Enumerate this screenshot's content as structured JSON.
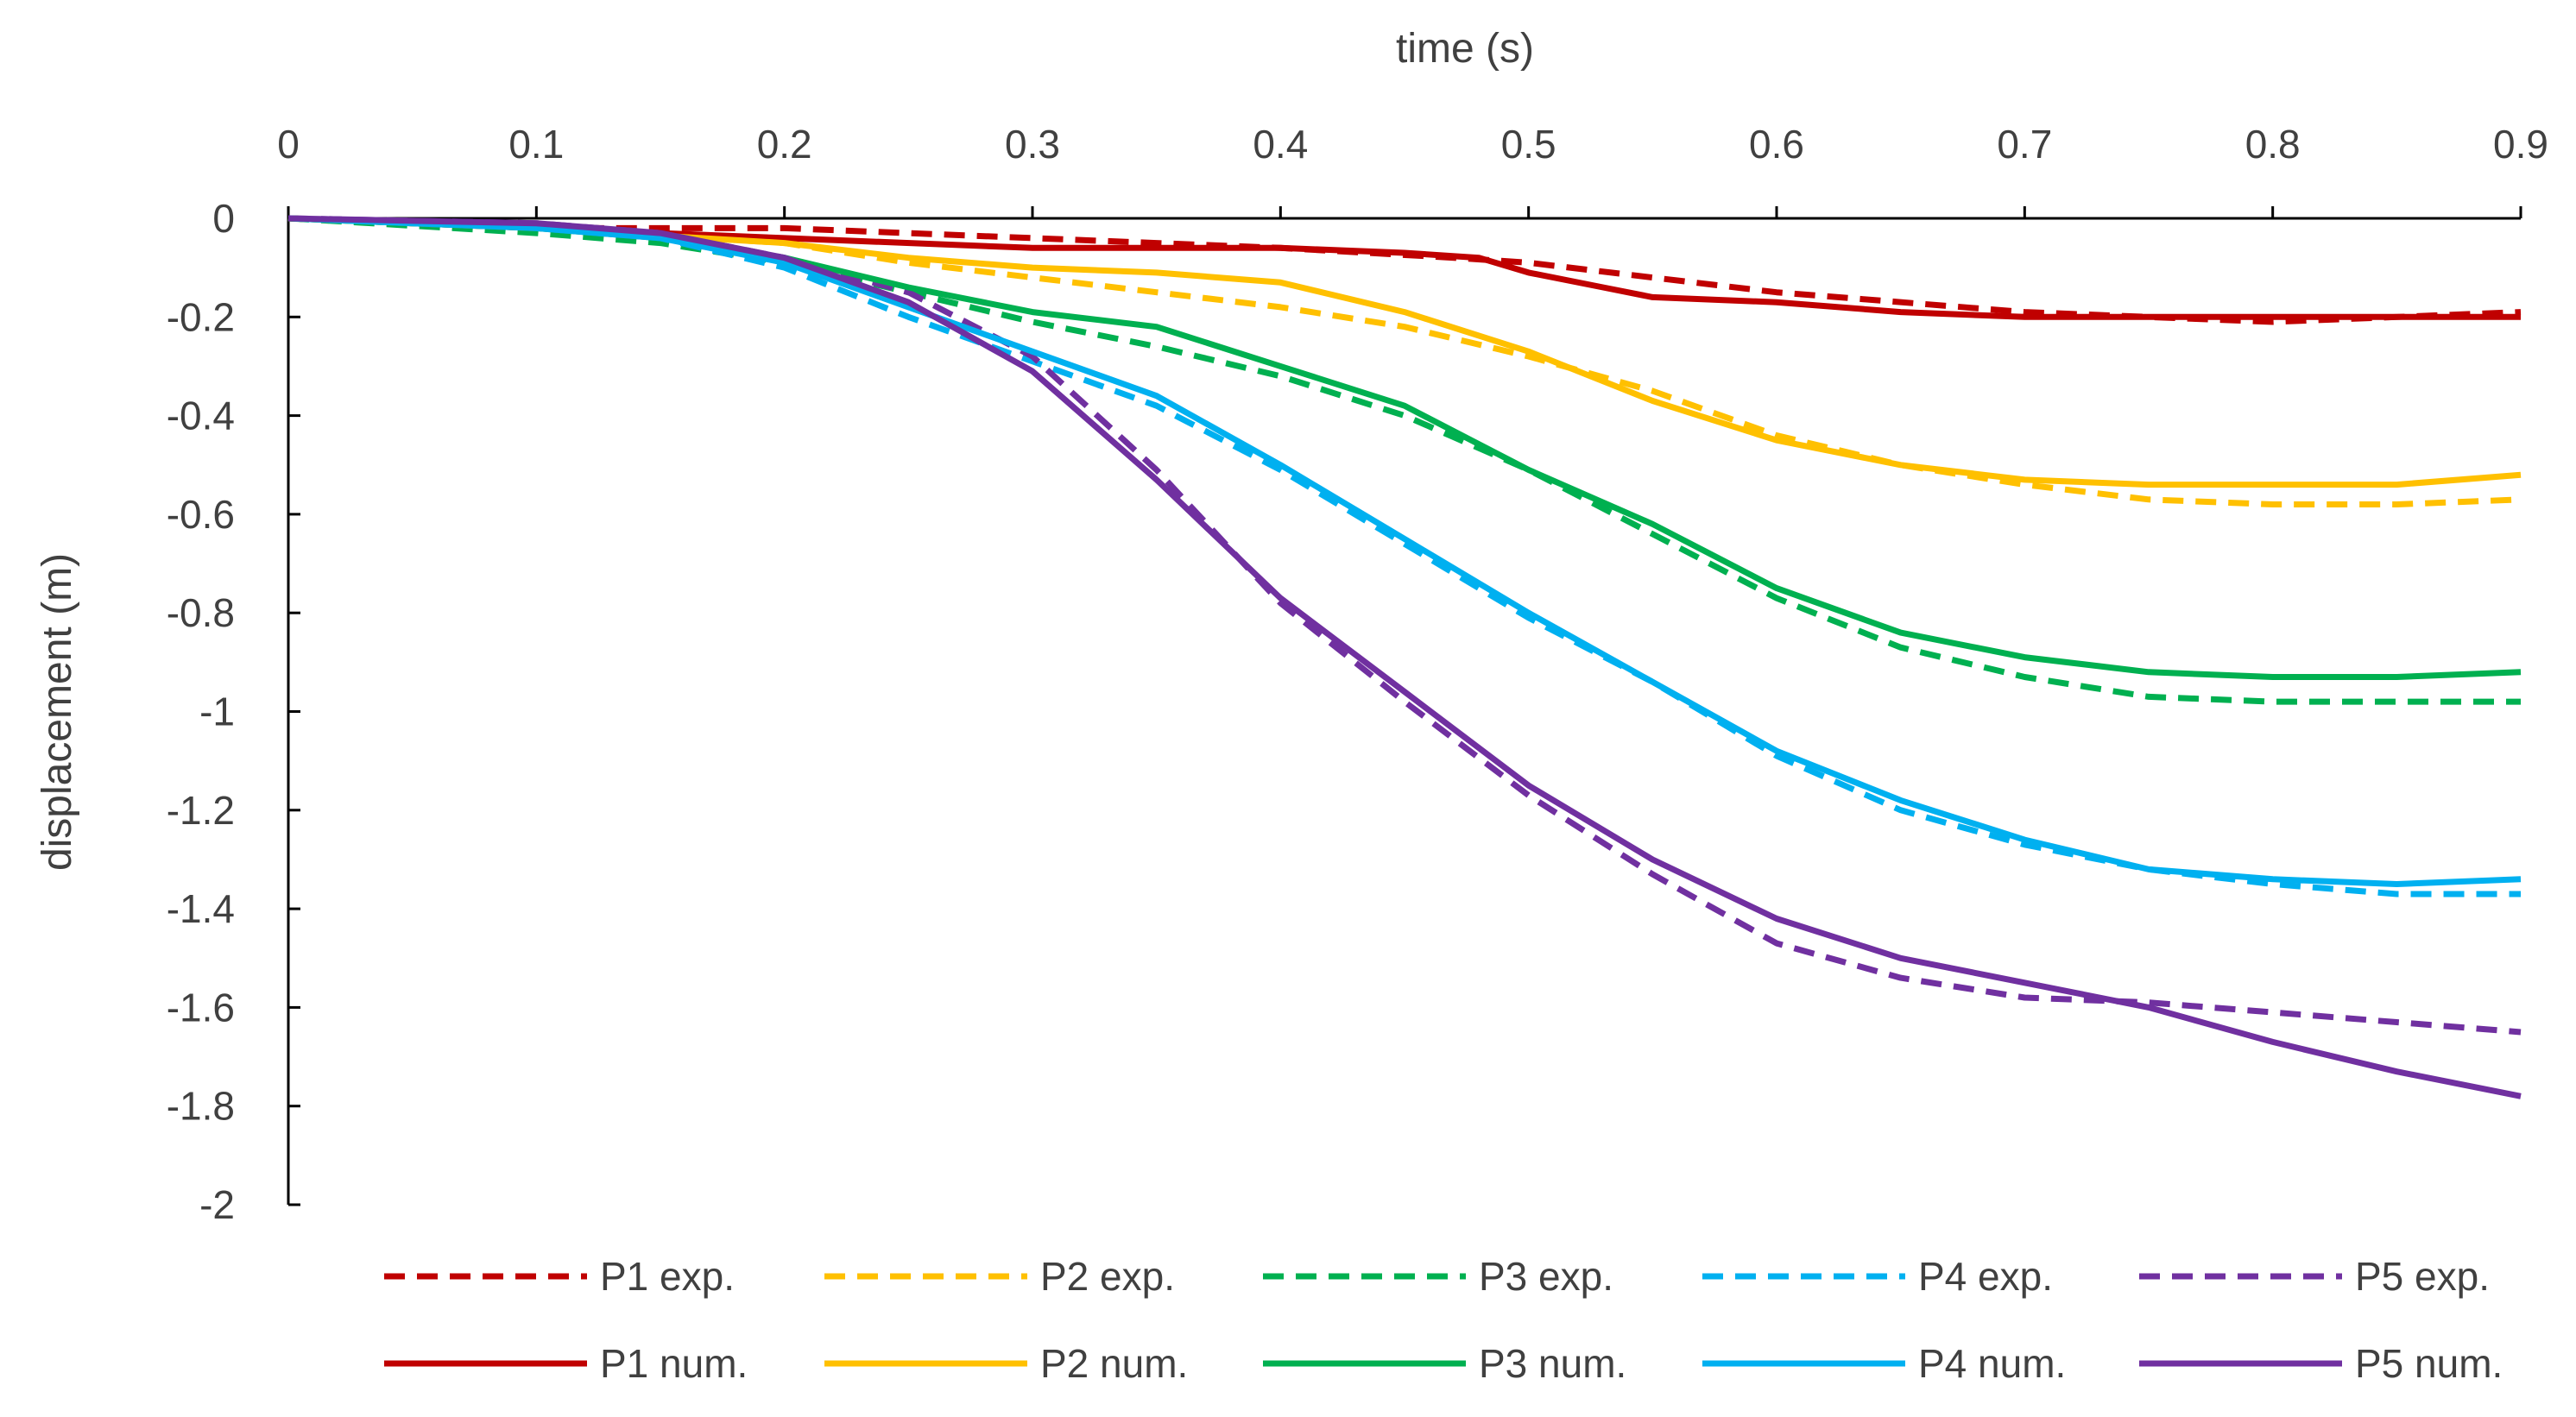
{
  "chart_data": {
    "type": "line",
    "xlabel": "time (s)",
    "ylabel": "displacement (m)",
    "xlim": [
      0,
      0.9
    ],
    "ylim": [
      -2,
      0
    ],
    "x_axis_position": "top",
    "xticks": [
      "0",
      "0.1",
      "0.2",
      "0.3",
      "0.4",
      "0.5",
      "0.6",
      "0.7",
      "0.8",
      "0.9"
    ],
    "yticks": [
      "0",
      "-0.2",
      "-0.4",
      "-0.6",
      "-0.8",
      "-1",
      "-1.2",
      "-1.4",
      "-1.6",
      "-1.8",
      "-2"
    ],
    "grid": false,
    "legend_position": "bottom",
    "series": [
      {
        "name": "P1 exp.",
        "color": "#C00000",
        "style": "dashed",
        "x": [
          0,
          0.1,
          0.2,
          0.3,
          0.4,
          0.47,
          0.5,
          0.55,
          0.6,
          0.7,
          0.8,
          0.9
        ],
        "y": [
          0,
          -0.02,
          -0.02,
          -0.04,
          -0.06,
          -0.08,
          -0.09,
          -0.12,
          -0.15,
          -0.19,
          -0.21,
          -0.19
        ]
      },
      {
        "name": "P2 exp.",
        "color": "#FFC000",
        "style": "dashed",
        "x": [
          0,
          0.1,
          0.2,
          0.25,
          0.3,
          0.35,
          0.4,
          0.45,
          0.5,
          0.55,
          0.6,
          0.65,
          0.7,
          0.75,
          0.8,
          0.85,
          0.9
        ],
        "y": [
          0,
          -0.02,
          -0.05,
          -0.09,
          -0.12,
          -0.15,
          -0.18,
          -0.22,
          -0.28,
          -0.35,
          -0.44,
          -0.5,
          -0.54,
          -0.57,
          -0.58,
          -0.58,
          -0.57
        ]
      },
      {
        "name": "P3 exp.",
        "color": "#00B050",
        "style": "dashed",
        "x": [
          0,
          0.1,
          0.15,
          0.2,
          0.25,
          0.3,
          0.35,
          0.4,
          0.45,
          0.5,
          0.55,
          0.6,
          0.65,
          0.7,
          0.75,
          0.8,
          0.85,
          0.9
        ],
        "y": [
          0,
          -0.03,
          -0.05,
          -0.09,
          -0.15,
          -0.21,
          -0.26,
          -0.32,
          -0.4,
          -0.51,
          -0.64,
          -0.77,
          -0.87,
          -0.93,
          -0.97,
          -0.98,
          -0.98,
          -0.98
        ]
      },
      {
        "name": "P4 exp.",
        "color": "#00B0F0",
        "style": "dashed",
        "x": [
          0,
          0.1,
          0.15,
          0.2,
          0.25,
          0.3,
          0.35,
          0.4,
          0.45,
          0.5,
          0.55,
          0.6,
          0.65,
          0.7,
          0.75,
          0.8,
          0.85,
          0.9
        ],
        "y": [
          0,
          -0.02,
          -0.04,
          -0.1,
          -0.2,
          -0.29,
          -0.38,
          -0.51,
          -0.66,
          -0.81,
          -0.94,
          -1.09,
          -1.2,
          -1.27,
          -1.32,
          -1.35,
          -1.37,
          -1.37
        ]
      },
      {
        "name": "P5 exp.",
        "color": "#7030A0",
        "style": "dashed",
        "x": [
          0,
          0.1,
          0.15,
          0.2,
          0.25,
          0.3,
          0.35,
          0.4,
          0.45,
          0.5,
          0.55,
          0.6,
          0.65,
          0.7,
          0.75,
          0.8,
          0.85,
          0.9
        ],
        "y": [
          0,
          -0.01,
          -0.03,
          -0.08,
          -0.15,
          -0.28,
          -0.51,
          -0.78,
          -0.98,
          -1.17,
          -1.33,
          -1.47,
          -1.54,
          -1.58,
          -1.59,
          -1.61,
          -1.63,
          -1.65
        ]
      },
      {
        "name": "P1 num.",
        "color": "#C00000",
        "style": "solid",
        "x": [
          0,
          0.1,
          0.2,
          0.3,
          0.4,
          0.45,
          0.48,
          0.5,
          0.53,
          0.55,
          0.6,
          0.65,
          0.7,
          0.75,
          0.8,
          0.85,
          0.9
        ],
        "y": [
          0,
          -0.02,
          -0.04,
          -0.06,
          -0.06,
          -0.07,
          -0.08,
          -0.11,
          -0.14,
          -0.16,
          -0.17,
          -0.19,
          -0.2,
          -0.2,
          -0.2,
          -0.2,
          -0.2
        ]
      },
      {
        "name": "P2 num.",
        "color": "#FFC000",
        "style": "solid",
        "x": [
          0,
          0.1,
          0.2,
          0.25,
          0.3,
          0.35,
          0.4,
          0.45,
          0.5,
          0.55,
          0.6,
          0.65,
          0.7,
          0.75,
          0.8,
          0.85,
          0.9
        ],
        "y": [
          0,
          -0.02,
          -0.05,
          -0.08,
          -0.1,
          -0.11,
          -0.13,
          -0.19,
          -0.27,
          -0.37,
          -0.45,
          -0.5,
          -0.53,
          -0.54,
          -0.54,
          -0.54,
          -0.52
        ]
      },
      {
        "name": "P3 num.",
        "color": "#00B050",
        "style": "solid",
        "x": [
          0,
          0.1,
          0.15,
          0.2,
          0.25,
          0.3,
          0.35,
          0.4,
          0.45,
          0.5,
          0.55,
          0.6,
          0.65,
          0.7,
          0.75,
          0.8,
          0.85,
          0.9
        ],
        "y": [
          0,
          -0.02,
          -0.04,
          -0.08,
          -0.14,
          -0.19,
          -0.22,
          -0.3,
          -0.38,
          -0.51,
          -0.62,
          -0.75,
          -0.84,
          -0.89,
          -0.92,
          -0.93,
          -0.93,
          -0.92
        ]
      },
      {
        "name": "P4 num.",
        "color": "#00B0F0",
        "style": "solid",
        "x": [
          0,
          0.1,
          0.15,
          0.2,
          0.25,
          0.3,
          0.35,
          0.4,
          0.45,
          0.5,
          0.55,
          0.6,
          0.65,
          0.7,
          0.75,
          0.8,
          0.85,
          0.9
        ],
        "y": [
          0,
          -0.02,
          -0.04,
          -0.09,
          -0.18,
          -0.27,
          -0.36,
          -0.5,
          -0.65,
          -0.8,
          -0.94,
          -1.08,
          -1.18,
          -1.26,
          -1.32,
          -1.34,
          -1.35,
          -1.34
        ]
      },
      {
        "name": "P5 num.",
        "color": "#7030A0",
        "style": "solid",
        "x": [
          0,
          0.1,
          0.15,
          0.2,
          0.25,
          0.3,
          0.35,
          0.4,
          0.45,
          0.5,
          0.55,
          0.6,
          0.65,
          0.7,
          0.75,
          0.8,
          0.85,
          0.9
        ],
        "y": [
          0,
          -0.01,
          -0.03,
          -0.08,
          -0.17,
          -0.31,
          -0.53,
          -0.77,
          -0.96,
          -1.15,
          -1.3,
          -1.42,
          -1.5,
          -1.55,
          -1.6,
          -1.67,
          -1.73,
          -1.78
        ]
      }
    ]
  }
}
